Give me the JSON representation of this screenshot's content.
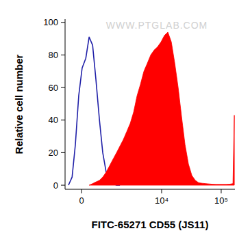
{
  "chart_data": {
    "type": "line",
    "x_label": "FITC-65271 CD55 (JS11)",
    "y_label": "Relative cell number",
    "annotations": [
      "WWW.PTGLAB.COM"
    ],
    "log": "x",
    "x": [
      -480,
      -340,
      -220,
      -100,
      20,
      150,
      270,
      400,
      530,
      680,
      830,
      1000,
      1190,
      1400,
      1640,
      1900,
      2190,
      2530,
      2910,
      3340,
      3830,
      4380,
      5010,
      5750,
      6550,
      7480,
      8550,
      9770,
      11160,
      12730,
      14560,
      16610,
      18960,
      21650,
      24710,
      28210,
      32210,
      36760,
      41950,
      47870,
      54650,
      62380,
      71200,
      81260,
      92730,
      105900,
      120900,
      138000,
      157500,
      166000
    ],
    "series": [
      {
        "type": "line",
        "color": "#2020a8",
        "values": [
          0,
          5,
          25,
          55,
          72,
          78,
          91,
          86,
          65,
          40,
          20,
          8,
          3,
          1,
          0,
          0,
          null,
          null,
          null,
          null,
          null,
          null,
          null,
          null,
          null,
          null,
          null,
          null,
          null,
          null,
          null,
          null,
          null,
          null,
          null,
          null,
          null,
          null,
          null,
          null,
          null,
          null,
          null,
          null,
          null,
          null,
          null,
          null,
          null,
          null
        ]
      },
      {
        "type": "area",
        "color": "#ff0000",
        "values": [
          null,
          null,
          null,
          null,
          null,
          null,
          0,
          1,
          2,
          3,
          5,
          8,
          12,
          16,
          20,
          24,
          28,
          33,
          38,
          45,
          55,
          62,
          70,
          75,
          80,
          83,
          85,
          88,
          92,
          94,
          88,
          75,
          60,
          42,
          25,
          13,
          6,
          3,
          1.5,
          1.2,
          1,
          0.8,
          0.6,
          0.5,
          0.5,
          0.5,
          0.5,
          0.6,
          1,
          43
        ]
      }
    ],
    "xlim": [
      -620,
      170000
    ],
    "xticks": [
      0,
      {
        "value": 10000,
        "label": "10⁴"
      },
      {
        "value": 100000,
        "label": "10⁵"
      }
    ],
    "ylim": [
      -2.5,
      102
    ],
    "yticks": [
      0,
      20,
      40,
      60,
      80,
      100
    ]
  }
}
